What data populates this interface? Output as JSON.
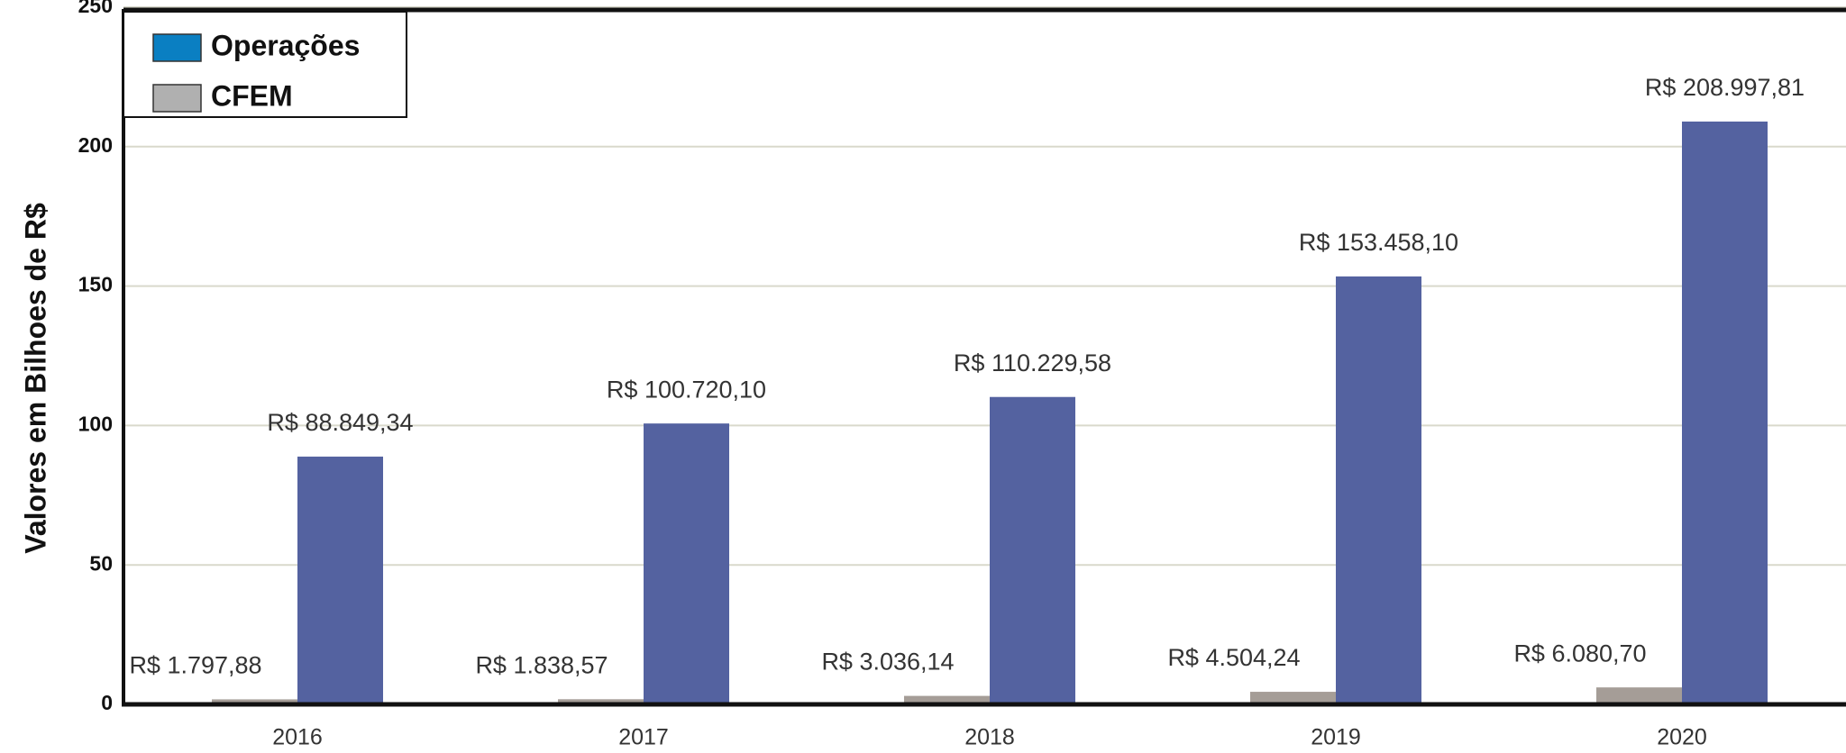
{
  "chart_data": {
    "type": "bar",
    "y_label": "Valores em Bilhoes de R$",
    "categories": [
      "2016",
      "2017",
      "2018",
      "2019",
      "2020"
    ],
    "series": [
      {
        "name": "CFEM",
        "color": "#a59d97",
        "legend_color": "#b0b0b0",
        "values": [
          1.79788,
          1.83857,
          3.03614,
          4.50424,
          6.0807
        ],
        "value_labels": [
          "R$ 1.797,88",
          "R$ 1.838,57",
          "R$ 3.036,14",
          "R$ 4.504,24",
          "R$ 6.080,70"
        ]
      },
      {
        "name": "Operações",
        "color": "#5462a0",
        "legend_color": "#0a7fc2",
        "values": [
          88.84934,
          100.7201,
          110.22958,
          153.4581,
          208.99781
        ],
        "value_labels": [
          "R$ 88.849,34",
          "R$ 100.720,10",
          "R$ 110.229,58",
          "R$ 153.458,10",
          "R$ 208.997,81"
        ]
      }
    ],
    "legend_order": [
      1,
      0
    ],
    "ylim": [
      0,
      250
    ],
    "yticks": [
      0,
      50,
      100,
      150,
      200,
      250
    ],
    "grid": true,
    "legend": "upper left"
  }
}
